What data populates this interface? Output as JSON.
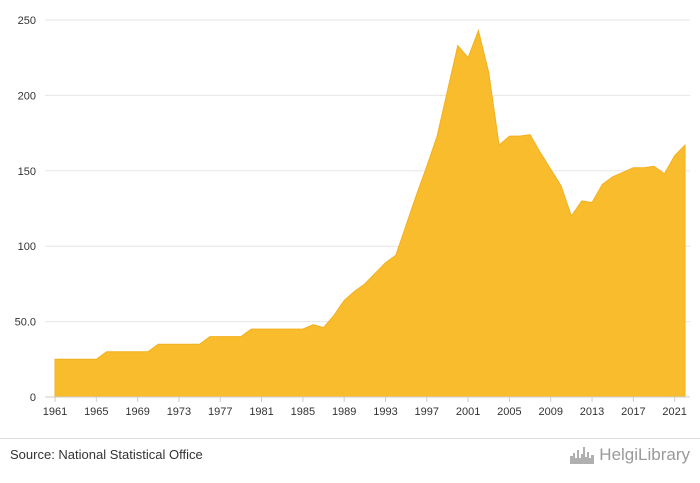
{
  "chart_data": {
    "type": "area",
    "title": "",
    "xlabel": "",
    "ylabel": "",
    "x": [
      1961,
      1962,
      1963,
      1964,
      1965,
      1966,
      1967,
      1968,
      1969,
      1970,
      1971,
      1972,
      1973,
      1974,
      1975,
      1976,
      1977,
      1978,
      1979,
      1980,
      1981,
      1982,
      1983,
      1984,
      1985,
      1986,
      1987,
      1988,
      1989,
      1990,
      1991,
      1992,
      1993,
      1994,
      1995,
      1996,
      1997,
      1998,
      1999,
      2000,
      2001,
      2002,
      2003,
      2004,
      2005,
      2006,
      2007,
      2008,
      2009,
      2010,
      2011,
      2012,
      2013,
      2014,
      2015,
      2016,
      2017,
      2018,
      2019,
      2020,
      2021,
      2022
    ],
    "values": [
      25,
      25,
      25,
      25,
      25,
      30,
      30,
      30,
      30,
      30,
      35,
      35,
      35,
      35,
      35,
      40,
      40,
      40,
      40,
      45,
      45,
      45,
      45,
      45,
      45,
      48,
      46,
      54,
      64,
      70,
      75,
      82,
      89,
      94,
      114,
      134,
      153,
      173,
      203,
      233,
      225,
      243,
      215,
      167,
      173,
      173,
      174,
      162,
      151,
      140,
      120,
      130,
      129,
      141,
      146,
      149,
      152,
      152,
      153,
      148,
      160,
      167
    ],
    "xticks": [
      1961,
      1965,
      1969,
      1973,
      1977,
      1981,
      1985,
      1989,
      1993,
      1997,
      2001,
      2005,
      2009,
      2013,
      2017,
      2021
    ],
    "yticks": [
      {
        "value": 0,
        "label": "0"
      },
      {
        "value": 50,
        "label": "50.0"
      },
      {
        "value": 100,
        "label": "100"
      },
      {
        "value": 150,
        "label": "150"
      },
      {
        "value": 200,
        "label": "200"
      },
      {
        "value": 250,
        "label": "250"
      }
    ],
    "ylim": [
      0,
      250
    ],
    "grid": true,
    "colors": {
      "area": "#f8bc2d",
      "line": "#f3b01f",
      "grid": "#e6e6e6",
      "axis": "#cccccc"
    }
  },
  "footer": {
    "source": "Source: National Statistical Office",
    "brand": "HelgiLibrary",
    "brand_icon": "city-skyline-icon"
  }
}
